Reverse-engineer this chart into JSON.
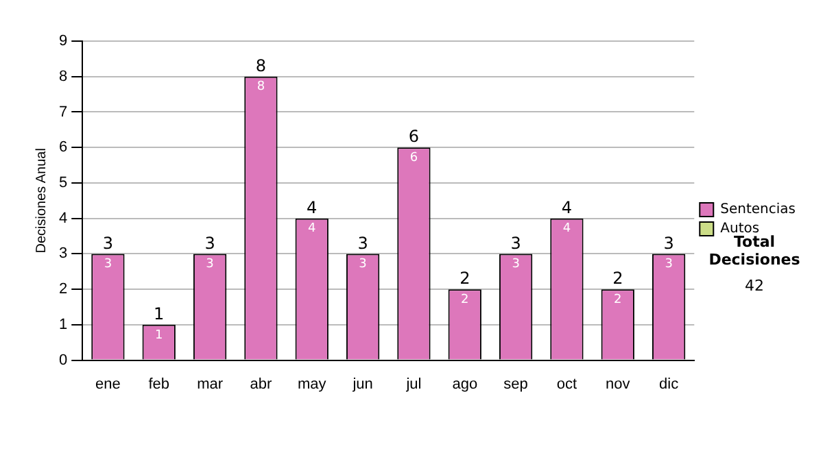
{
  "chart_data": {
    "type": "bar",
    "ylabel": "Decisiones Anual",
    "categories": [
      "ene",
      "feb",
      "mar",
      "abr",
      "may",
      "jun",
      "jul",
      "ago",
      "sep",
      "oct",
      "nov",
      "dic"
    ],
    "series": [
      {
        "name": "Sentencias",
        "color": "#dd77bb",
        "values": [
          3,
          1,
          3,
          8,
          4,
          3,
          6,
          2,
          3,
          4,
          2,
          3
        ],
        "value_labels": [
          "3",
          "1",
          "3",
          "8",
          "4",
          "3",
          "6",
          "2",
          "3",
          "4",
          "2",
          "3"
        ]
      },
      {
        "name": "Autos",
        "color": "#ccdd88",
        "values": [
          0,
          0,
          0,
          0,
          0,
          0,
          0,
          0,
          0,
          0,
          0,
          0
        ]
      }
    ],
    "stacked": true,
    "totals": [
      "3",
      "1",
      "3",
      "8",
      "4",
      "3",
      "6",
      "2",
      "3",
      "4",
      "2",
      "3"
    ],
    "ylim": [
      0,
      9
    ],
    "yticks": [
      0,
      1,
      2,
      3,
      4,
      5,
      6,
      7,
      8,
      9
    ],
    "grid": "y",
    "legend": "right",
    "annotations": [
      "Total Decisiones",
      "42"
    ]
  }
}
